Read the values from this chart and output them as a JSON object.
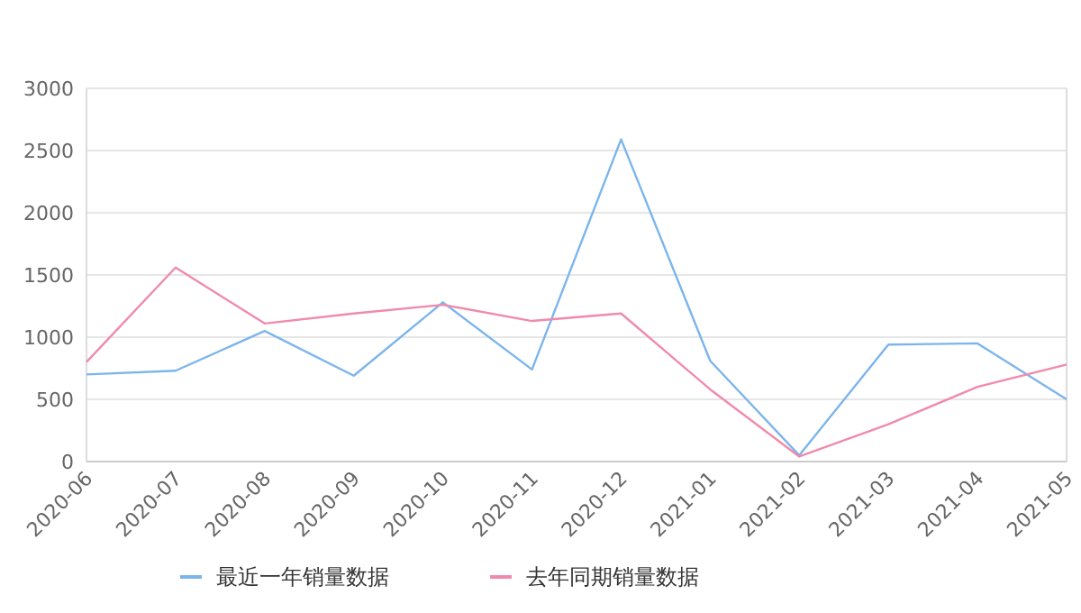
{
  "chart_data": {
    "type": "line",
    "categories": [
      "2020-06",
      "2020-07",
      "2020-08",
      "2020-09",
      "2020-10",
      "2020-11",
      "2020-12",
      "2021-01",
      "2021-02",
      "2021-03",
      "2021-04",
      "2021-05"
    ],
    "series": [
      {
        "name": "最近一年销量数据",
        "color": "#7cb5ec",
        "values": [
          700,
          730,
          1050,
          690,
          1280,
          740,
          2590,
          810,
          50,
          940,
          950,
          500
        ]
      },
      {
        "name": "去年同期销量数据",
        "color": "#f08aac",
        "values": [
          800,
          1560,
          1110,
          1190,
          1260,
          1130,
          1190,
          580,
          40,
          300,
          600,
          780
        ]
      }
    ],
    "ylim": [
      0,
      3000
    ],
    "yticks": [
      0,
      500,
      1000,
      1500,
      2000,
      2500,
      3000
    ],
    "grid": "y",
    "legend": "bottom",
    "marker": "none",
    "line_style": "solid"
  }
}
